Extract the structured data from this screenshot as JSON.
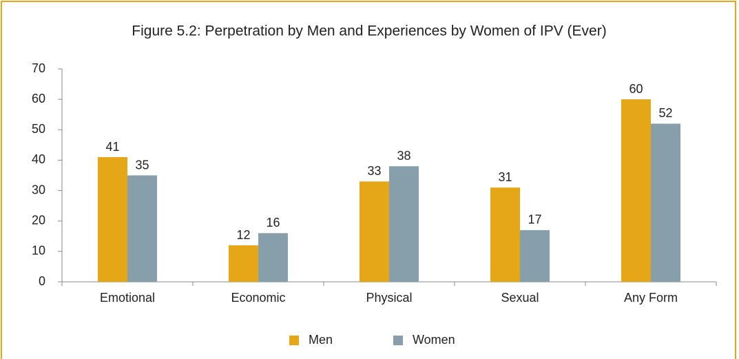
{
  "chart_data": {
    "type": "bar",
    "title": "Figure 5.2: Perpetration by Men and Experiences by Women of IPV (Ever)",
    "categories": [
      "Emotional",
      "Economic",
      "Physical",
      "Sexual",
      "Any Form"
    ],
    "series": [
      {
        "name": "Men",
        "color": "#e5a617",
        "values": [
          41,
          12,
          33,
          31,
          60
        ]
      },
      {
        "name": "Women",
        "color": "#879fab",
        "values": [
          35,
          16,
          38,
          17,
          52
        ]
      }
    ],
    "ylim": [
      0,
      70
    ],
    "yticks": [
      0,
      10,
      20,
      30,
      40,
      50,
      60,
      70
    ],
    "grid": false,
    "legend": "bottom"
  }
}
